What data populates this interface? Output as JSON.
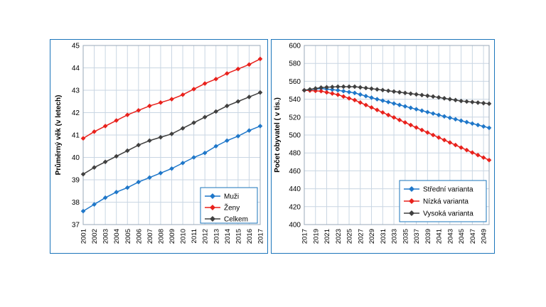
{
  "chart_data": [
    {
      "type": "line",
      "ylabel": "Průměrný věk (v letech)",
      "xlabel": "",
      "ylim": [
        37,
        45
      ],
      "yticks": [
        37,
        38,
        39,
        40,
        41,
        42,
        43,
        44,
        45
      ],
      "grid": true,
      "legend": "bottom-right",
      "categories": [
        "2001",
        "2002",
        "2003",
        "2004",
        "2005",
        "2006",
        "2007",
        "2008",
        "2009",
        "2010",
        "2011",
        "2012",
        "2013",
        "2014",
        "2015",
        "2016",
        "2017"
      ],
      "series": [
        {
          "name": "Muži",
          "color": "#1f77c9",
          "values": [
            37.6,
            37.9,
            38.2,
            38.45,
            38.65,
            38.9,
            39.1,
            39.3,
            39.5,
            39.75,
            40.0,
            40.2,
            40.5,
            40.75,
            40.95,
            41.2,
            41.4
          ]
        },
        {
          "name": "Ženy",
          "color": "#e8211c",
          "values": [
            40.85,
            41.15,
            41.4,
            41.65,
            41.9,
            42.1,
            42.3,
            42.45,
            42.6,
            42.8,
            43.05,
            43.3,
            43.5,
            43.75,
            43.95,
            44.15,
            44.4
          ]
        },
        {
          "name": "Celkem",
          "color": "#404040",
          "values": [
            39.25,
            39.55,
            39.8,
            40.05,
            40.3,
            40.55,
            40.75,
            40.9,
            41.05,
            41.3,
            41.55,
            41.8,
            42.05,
            42.3,
            42.5,
            42.7,
            42.9
          ]
        }
      ]
    },
    {
      "type": "line",
      "ylabel": "Počet obyvatel ( v tis.)",
      "xlabel": "",
      "ylim": [
        400,
        600
      ],
      "yticks": [
        400,
        420,
        440,
        460,
        480,
        500,
        520,
        540,
        560,
        580,
        600
      ],
      "grid": true,
      "legend": "bottom-right",
      "x_range": [
        2017,
        2050
      ],
      "xticks": [
        "2017",
        "2019",
        "2021",
        "2023",
        "2025",
        "2027",
        "2029",
        "2031",
        "2033",
        "2035",
        "2037",
        "2039",
        "2041",
        "2043",
        "2045",
        "2047",
        "2049"
      ],
      "series": [
        {
          "name": "Střední varianta",
          "color": "#1f77c9",
          "anchors": [
            [
              2017,
              550
            ],
            [
              2020,
              552
            ],
            [
              2023,
              550
            ],
            [
              2026,
              547
            ],
            [
              2030,
              540
            ],
            [
              2035,
              532
            ],
            [
              2040,
              524
            ],
            [
              2045,
              516
            ],
            [
              2050,
              508
            ]
          ]
        },
        {
          "name": "Nízká varianta",
          "color": "#e8211c",
          "anchors": [
            [
              2017,
              550
            ],
            [
              2020,
              549
            ],
            [
              2023,
              545
            ],
            [
              2026,
              539
            ],
            [
              2030,
              528
            ],
            [
              2035,
              514
            ],
            [
              2040,
              500
            ],
            [
              2045,
              486
            ],
            [
              2050,
              472
            ]
          ]
        },
        {
          "name": "Vysoká varianta",
          "color": "#404040",
          "anchors": [
            [
              2017,
              550
            ],
            [
              2020,
              553
            ],
            [
              2023,
              554
            ],
            [
              2026,
              554
            ],
            [
              2030,
              551
            ],
            [
              2035,
              547
            ],
            [
              2040,
              543
            ],
            [
              2045,
              538
            ],
            [
              2050,
              535
            ]
          ]
        }
      ]
    }
  ]
}
